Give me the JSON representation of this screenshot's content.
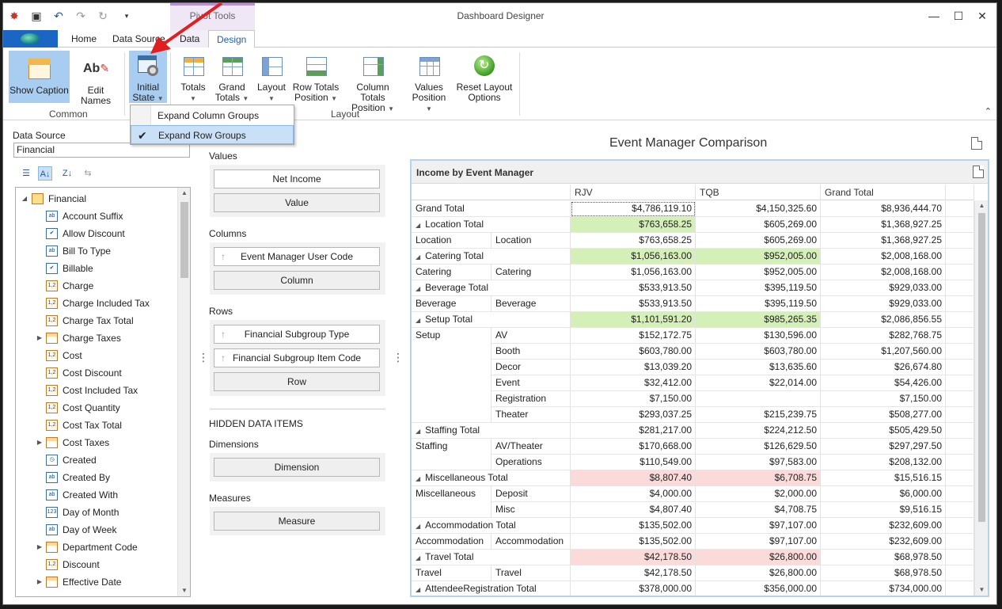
{
  "window": {
    "title": "Dashboard Designer",
    "contextual_tab_group": "Pivot Tools"
  },
  "tabs": [
    "Home",
    "Data Source",
    "Data",
    "Design"
  ],
  "active_tab": "Design",
  "ribbon": {
    "common": {
      "label": "Common",
      "show_caption": "Show Caption",
      "edit_names": "Edit Names"
    },
    "initial_state": {
      "line1": "Initial",
      "line2": "State"
    },
    "layout": {
      "label": "Layout",
      "totals": "Totals",
      "grand_totals_1": "Grand",
      "grand_totals_2": "Totals",
      "layout": "Layout",
      "row_totals_1": "Row Totals",
      "row_totals_2": "Position",
      "column_totals_1": "Column Totals",
      "column_totals_2": "Position",
      "values_1": "Values",
      "values_2": "Position",
      "reset_1": "Reset Layout",
      "reset_2": "Options"
    }
  },
  "initial_state_menu": {
    "items": [
      {
        "label": "Expand Column Groups",
        "checked": false
      },
      {
        "label": "Expand Row Groups",
        "checked": true
      }
    ]
  },
  "data_source": {
    "label": "Data Source",
    "value": "Financial",
    "root": "Financial",
    "fields": [
      {
        "label": "Account Suffix",
        "icon": "ab",
        "expandable": false
      },
      {
        "label": "Allow Discount",
        "icon": "check",
        "expandable": false
      },
      {
        "label": "Bill To Type",
        "icon": "ab",
        "expandable": false
      },
      {
        "label": "Billable",
        "icon": "check",
        "expandable": false
      },
      {
        "label": "Charge",
        "icon": "1,2",
        "expandable": false
      },
      {
        "label": "Charge Included Tax",
        "icon": "1,2",
        "expandable": false
      },
      {
        "label": "Charge Tax Total",
        "icon": "1,2",
        "expandable": false
      },
      {
        "label": "Charge Taxes",
        "icon": "table",
        "expandable": true
      },
      {
        "label": "Cost",
        "icon": "1,2",
        "expandable": false
      },
      {
        "label": "Cost Discount",
        "icon": "1,2",
        "expandable": false
      },
      {
        "label": "Cost Included Tax",
        "icon": "1,2",
        "expandable": false
      },
      {
        "label": "Cost Quantity",
        "icon": "1,2",
        "expandable": false
      },
      {
        "label": "Cost Tax Total",
        "icon": "1,2",
        "expandable": false
      },
      {
        "label": "Cost Taxes",
        "icon": "table",
        "expandable": true
      },
      {
        "label": "Created",
        "icon": "clock",
        "expandable": false
      },
      {
        "label": "Created By",
        "icon": "ab",
        "expandable": false
      },
      {
        "label": "Created With",
        "icon": "ab",
        "expandable": false
      },
      {
        "label": "Day of Month",
        "icon": "123",
        "expandable": false
      },
      {
        "label": "Day of Week",
        "icon": "ab",
        "expandable": false
      },
      {
        "label": "Department Code",
        "icon": "table",
        "expandable": true
      },
      {
        "label": "Discount",
        "icon": "1,2",
        "expandable": false
      },
      {
        "label": "Effective Date",
        "icon": "table",
        "expandable": true
      }
    ]
  },
  "binding": {
    "values_label": "Values",
    "values_items": [
      "Net Income"
    ],
    "values_placeholder": "Value",
    "columns_label": "Columns",
    "columns_items": [
      "Event Manager User Code"
    ],
    "columns_placeholder": "Column",
    "rows_label": "Rows",
    "rows_items": [
      "Financial Subgroup Type",
      "Financial Subgroup Item Code"
    ],
    "rows_placeholder": "Row",
    "hidden_label": "HIDDEN DATA ITEMS",
    "dimensions_label": "Dimensions",
    "dimensions_placeholder": "Dimension",
    "measures_label": "Measures",
    "measures_placeholder": "Measure"
  },
  "dashboard": {
    "title": "Event Manager Comparison",
    "pivot_caption": "Income by Event Manager",
    "columns": [
      "RJV",
      "TQB",
      "Grand Total"
    ],
    "rows": [
      {
        "type": "grand",
        "label": "Grand Total",
        "values": [
          "$4,786,119.10",
          "$4,150,325.60",
          "$8,936,444.70"
        ],
        "hl": [
          "",
          "",
          ""
        ]
      },
      {
        "type": "total",
        "label": "Location Total",
        "values": [
          "$763,658.25",
          "$605,269.00",
          "$1,368,927.25"
        ],
        "hl": [
          "green",
          "",
          ""
        ]
      },
      {
        "type": "item",
        "group": "Location",
        "label": "Location",
        "values": [
          "$763,658.25",
          "$605,269.00",
          "$1,368,927.25"
        ],
        "hl": [
          "",
          "",
          ""
        ]
      },
      {
        "type": "total",
        "label": "Catering Total",
        "values": [
          "$1,056,163.00",
          "$952,005.00",
          "$2,008,168.00"
        ],
        "hl": [
          "green",
          "green",
          ""
        ]
      },
      {
        "type": "item",
        "group": "Catering",
        "label": "Catering",
        "values": [
          "$1,056,163.00",
          "$952,005.00",
          "$2,008,168.00"
        ],
        "hl": [
          "",
          "",
          ""
        ]
      },
      {
        "type": "total",
        "label": "Beverage Total",
        "values": [
          "$533,913.50",
          "$395,119.50",
          "$929,033.00"
        ],
        "hl": [
          "",
          "",
          ""
        ]
      },
      {
        "type": "item",
        "group": "Beverage",
        "label": "Beverage",
        "values": [
          "$533,913.50",
          "$395,119.50",
          "$929,033.00"
        ],
        "hl": [
          "",
          "",
          ""
        ]
      },
      {
        "type": "total",
        "label": "Setup Total",
        "values": [
          "$1,101,591.20",
          "$985,265.35",
          "$2,086,856.55"
        ],
        "hl": [
          "green",
          "green",
          ""
        ]
      },
      {
        "type": "item",
        "group": "Setup",
        "label": "AV",
        "values": [
          "$152,172.75",
          "$130,596.00",
          "$282,768.75"
        ],
        "hl": [
          "",
          "",
          ""
        ]
      },
      {
        "type": "item",
        "group": "",
        "label": "Booth",
        "values": [
          "$603,780.00",
          "$603,780.00",
          "$1,207,560.00"
        ],
        "hl": [
          "",
          "",
          ""
        ]
      },
      {
        "type": "item",
        "group": "",
        "label": "Decor",
        "values": [
          "$13,039.20",
          "$13,635.60",
          "$26,674.80"
        ],
        "hl": [
          "",
          "",
          ""
        ]
      },
      {
        "type": "item",
        "group": "",
        "label": "Event",
        "values": [
          "$32,412.00",
          "$22,014.00",
          "$54,426.00"
        ],
        "hl": [
          "",
          "",
          ""
        ]
      },
      {
        "type": "item",
        "group": "",
        "label": "Registration",
        "values": [
          "$7,150.00",
          "",
          "$7,150.00"
        ],
        "hl": [
          "",
          "",
          ""
        ]
      },
      {
        "type": "item",
        "group": "",
        "label": "Theater",
        "values": [
          "$293,037.25",
          "$215,239.75",
          "$508,277.00"
        ],
        "hl": [
          "",
          "",
          ""
        ]
      },
      {
        "type": "total",
        "label": "Staffing Total",
        "values": [
          "$281,217.00",
          "$224,212.50",
          "$505,429.50"
        ],
        "hl": [
          "",
          "",
          ""
        ]
      },
      {
        "type": "item",
        "group": "Staffing",
        "label": "AV/Theater",
        "values": [
          "$170,668.00",
          "$126,629.50",
          "$297,297.50"
        ],
        "hl": [
          "",
          "",
          ""
        ]
      },
      {
        "type": "item",
        "group": "",
        "label": "Operations",
        "values": [
          "$110,549.00",
          "$97,583.00",
          "$208,132.00"
        ],
        "hl": [
          "",
          "",
          ""
        ]
      },
      {
        "type": "total",
        "label": "Miscellaneous Total",
        "values": [
          "$8,807.40",
          "$6,708.75",
          "$15,516.15"
        ],
        "hl": [
          "red",
          "red",
          ""
        ]
      },
      {
        "type": "item",
        "group": "Miscellaneous",
        "label": "Deposit",
        "values": [
          "$4,000.00",
          "$2,000.00",
          "$6,000.00"
        ],
        "hl": [
          "",
          "",
          ""
        ]
      },
      {
        "type": "item",
        "group": "",
        "label": "Misc",
        "values": [
          "$4,807.40",
          "$4,708.75",
          "$9,516.15"
        ],
        "hl": [
          "",
          "",
          ""
        ]
      },
      {
        "type": "total",
        "label": "Accommodation Total",
        "values": [
          "$135,502.00",
          "$97,107.00",
          "$232,609.00"
        ],
        "hl": [
          "",
          "",
          ""
        ]
      },
      {
        "type": "item",
        "group": "Accommodation",
        "label": "Accommodation",
        "values": [
          "$135,502.00",
          "$97,107.00",
          "$232,609.00"
        ],
        "hl": [
          "",
          "",
          ""
        ]
      },
      {
        "type": "total",
        "label": "Travel Total",
        "values": [
          "$42,178.50",
          "$26,800.00",
          "$68,978.50"
        ],
        "hl": [
          "red",
          "red",
          ""
        ]
      },
      {
        "type": "item",
        "group": "Travel",
        "label": "Travel",
        "values": [
          "$42,178.50",
          "$26,800.00",
          "$68,978.50"
        ],
        "hl": [
          "",
          "",
          ""
        ]
      },
      {
        "type": "total",
        "label": "AttendeeRegistration Total",
        "values": [
          "$378,000.00",
          "$356,000.00",
          "$734,000.00"
        ],
        "hl": [
          "",
          "",
          ""
        ]
      }
    ]
  },
  "colors": {
    "accent": "#1a66c2",
    "selected_ribbon": "#a9cdf0",
    "positive_highlight": "#d5efb8",
    "negative_highlight": "#fbdada",
    "annotation_arrow": "#e02020"
  }
}
